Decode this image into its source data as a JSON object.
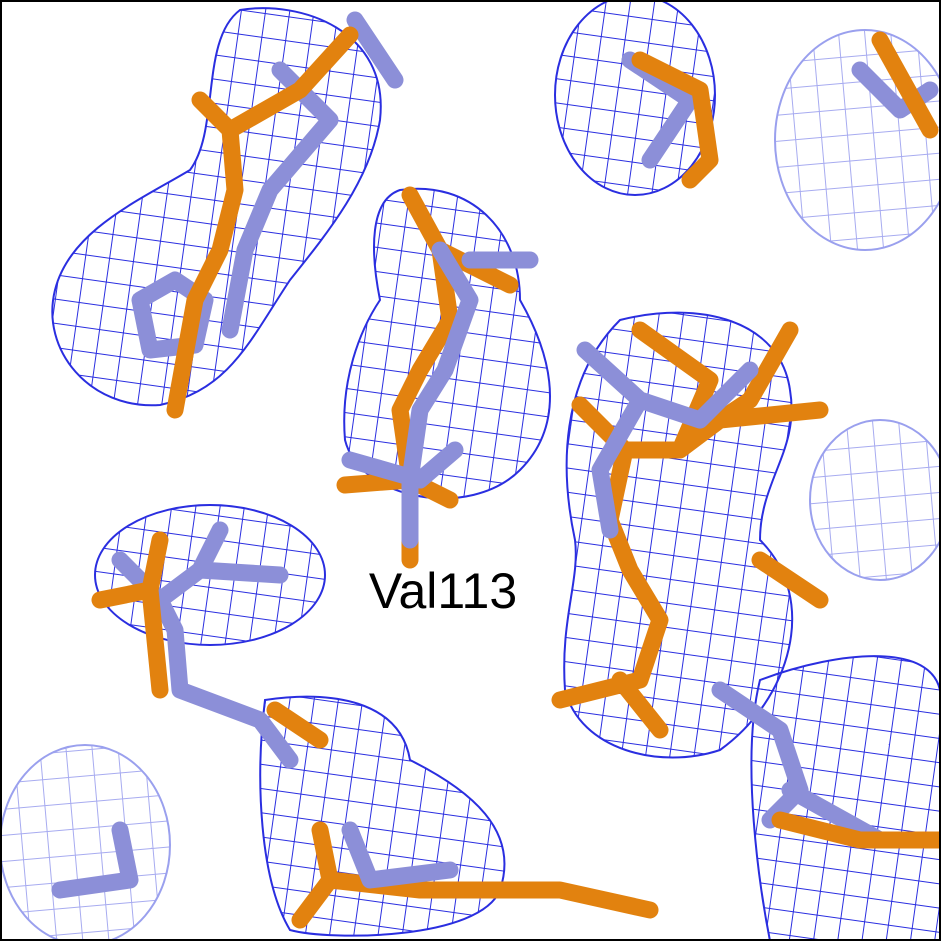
{
  "label": "Val113"
}
